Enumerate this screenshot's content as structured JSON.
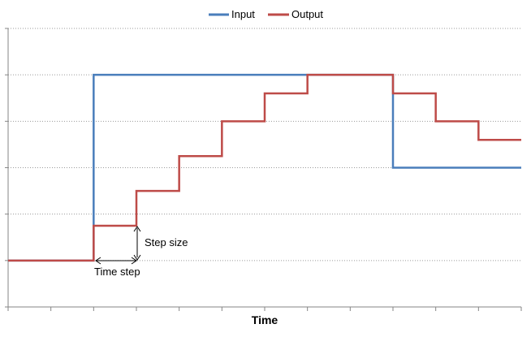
{
  "chart_data": {
    "type": "line",
    "subtype": "step",
    "xlabel": "Time",
    "ylabel": "",
    "x": [
      0,
      1,
      2,
      3,
      4,
      5,
      6,
      7,
      8,
      9,
      10,
      11,
      12
    ],
    "xlim": [
      0,
      12
    ],
    "ylim": [
      0,
      6
    ],
    "grid": true,
    "legend": "top-center",
    "series": [
      {
        "name": "Input",
        "color": "#4a7ebb",
        "values": [
          1,
          1,
          5,
          5,
          5,
          5,
          5,
          5,
          5,
          3,
          3,
          3,
          3
        ]
      },
      {
        "name": "Output",
        "color": "#be4b48",
        "values": [
          1,
          1,
          1.75,
          2.5,
          3.25,
          4,
          4.6,
          5,
          5,
          4.6,
          4,
          3.6,
          3.6
        ]
      }
    ],
    "annotations": {
      "step_size": "Step size",
      "time_step": "Time step"
    }
  }
}
